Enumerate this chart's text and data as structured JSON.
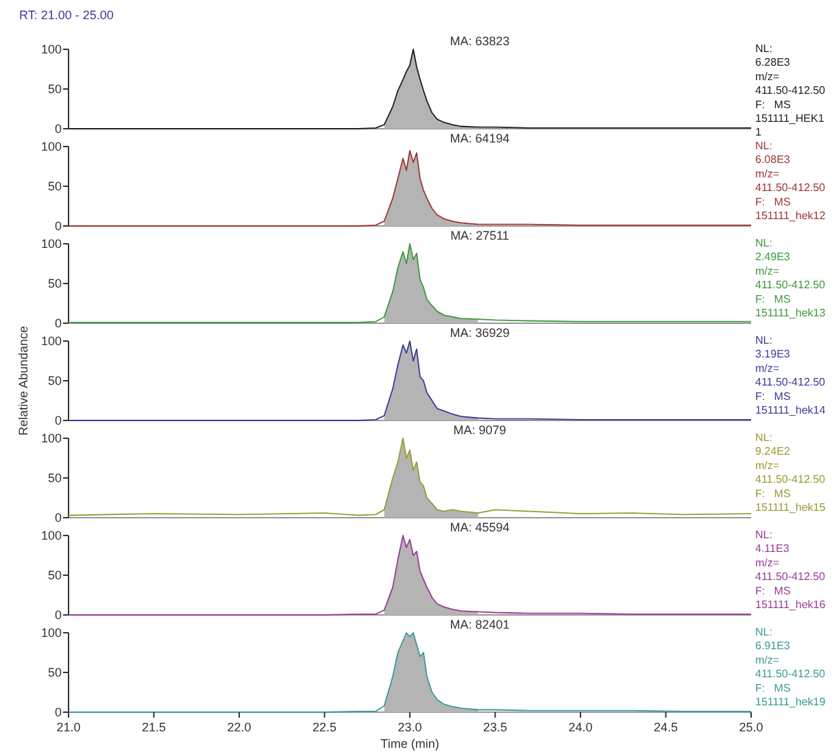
{
  "chart_data": [
    {
      "type": "line",
      "title": "RT: 21.00 - 25.00",
      "xlim": [
        21,
        25
      ],
      "ylim": [
        0,
        100
      ],
      "yticks": [
        0,
        50,
        100
      ],
      "tick_labels": "y",
      "grid": false,
      "annotations": [
        "MA: 63823",
        "NL:",
        "6.28E3",
        "m/z=",
        "411.50-412.50",
        "F:   MS",
        "151111_HEK1",
        "1"
      ],
      "series": [
        {
          "type": "area",
          "color": "#b4b4b4",
          "x": [
            22.85,
            22.9,
            22.93,
            22.96,
            22.98,
            23.0,
            23.02,
            23.04,
            23.06,
            23.08,
            23.1,
            23.13,
            23.16,
            23.2,
            23.25,
            23.3,
            23.4
          ],
          "values": [
            5,
            28,
            48,
            62,
            72,
            80,
            100,
            78,
            62,
            48,
            35,
            20,
            12,
            8,
            5,
            3,
            2
          ]
        },
        {
          "color": "#202020",
          "x": [
            21.0,
            21.5,
            22.0,
            22.5,
            22.7,
            22.8,
            22.85,
            22.9,
            22.93,
            22.96,
            22.98,
            23.0,
            23.02,
            23.04,
            23.06,
            23.08,
            23.1,
            23.13,
            23.16,
            23.2,
            23.25,
            23.3,
            23.4,
            23.5,
            23.7,
            24.0,
            24.3,
            24.6,
            25.0
          ],
          "values": [
            0,
            0,
            0,
            0,
            0,
            1,
            5,
            28,
            48,
            62,
            72,
            80,
            100,
            78,
            62,
            48,
            35,
            20,
            12,
            8,
            5,
            3,
            2,
            2,
            1,
            1,
            1,
            1,
            1
          ]
        }
      ]
    },
    {
      "type": "line",
      "xlim": [
        21,
        25
      ],
      "ylim": [
        0,
        100
      ],
      "yticks": [
        0,
        50,
        100
      ],
      "tick_labels": "y",
      "grid": false,
      "annotations": [
        "MA: 64194",
        "NL:",
        "6.08E3",
        "m/z=",
        "411.50-412.50",
        "F:   MS",
        "151111_hek12"
      ],
      "series": [
        {
          "type": "area",
          "color": "#b4b4b4",
          "x": [
            22.85,
            22.9,
            22.93,
            22.96,
            22.98,
            23.0,
            23.02,
            23.04,
            23.06,
            23.08,
            23.1,
            23.13,
            23.16,
            23.2,
            23.25,
            23.3,
            23.4
          ],
          "values": [
            6,
            35,
            60,
            85,
            70,
            95,
            80,
            92,
            60,
            45,
            35,
            22,
            14,
            9,
            6,
            4,
            2
          ]
        },
        {
          "color": "#a03434",
          "x": [
            21.0,
            21.5,
            22.0,
            22.5,
            22.7,
            22.8,
            22.85,
            22.9,
            22.93,
            22.96,
            22.98,
            23.0,
            23.02,
            23.04,
            23.06,
            23.08,
            23.1,
            23.13,
            23.16,
            23.2,
            23.25,
            23.3,
            23.4,
            23.5,
            23.7,
            24.0,
            24.3,
            24.6,
            25.0
          ],
          "values": [
            0,
            0,
            0,
            0,
            0,
            1,
            6,
            35,
            60,
            85,
            70,
            95,
            80,
            92,
            60,
            45,
            35,
            22,
            14,
            9,
            6,
            4,
            2,
            2,
            2,
            1,
            1,
            1,
            1
          ]
        }
      ]
    },
    {
      "type": "line",
      "xlim": [
        21,
        25
      ],
      "ylim": [
        0,
        100
      ],
      "yticks": [
        0,
        50,
        100
      ],
      "tick_labels": "y",
      "grid": false,
      "annotations": [
        "MA: 27511",
        "NL:",
        "2.49E3",
        "m/z=",
        "411.50-412.50",
        "F:   MS",
        "151111_hek13"
      ],
      "series": [
        {
          "type": "area",
          "color": "#b4b4b4",
          "x": [
            22.85,
            22.9,
            22.93,
            22.96,
            22.98,
            23.0,
            23.02,
            23.04,
            23.06,
            23.08,
            23.1,
            23.13,
            23.16,
            23.2,
            23.25,
            23.3,
            23.4
          ],
          "values": [
            8,
            40,
            70,
            90,
            75,
            100,
            80,
            88,
            55,
            45,
            30,
            22,
            15,
            10,
            8,
            6,
            5
          ]
        },
        {
          "color": "#3a9a3a",
          "x": [
            21.0,
            21.5,
            22.0,
            22.5,
            22.7,
            22.8,
            22.85,
            22.9,
            22.93,
            22.96,
            22.98,
            23.0,
            23.02,
            23.04,
            23.06,
            23.08,
            23.1,
            23.13,
            23.16,
            23.2,
            23.25,
            23.3,
            23.4,
            23.5,
            23.7,
            24.0,
            24.3,
            24.6,
            25.0
          ],
          "values": [
            1,
            1,
            1,
            1,
            1,
            2,
            8,
            40,
            70,
            90,
            75,
            100,
            80,
            88,
            55,
            45,
            30,
            22,
            15,
            10,
            8,
            6,
            5,
            4,
            3,
            2,
            2,
            2,
            2
          ]
        }
      ]
    },
    {
      "type": "line",
      "ylabel": "Relative Abundance",
      "xlim": [
        21,
        25
      ],
      "ylim": [
        0,
        100
      ],
      "yticks": [
        0,
        50,
        100
      ],
      "tick_labels": "y",
      "grid": false,
      "annotations": [
        "MA: 36929",
        "NL:",
        "3.19E3",
        "m/z=",
        "411.50-412.50",
        "F:   MS",
        "151111_hek14"
      ],
      "series": [
        {
          "type": "area",
          "color": "#b4b4b4",
          "x": [
            22.85,
            22.9,
            22.93,
            22.96,
            22.98,
            23.0,
            23.02,
            23.04,
            23.06,
            23.08,
            23.1,
            23.13,
            23.16,
            23.2,
            23.25,
            23.3,
            23.4
          ],
          "values": [
            6,
            40,
            70,
            95,
            85,
            100,
            75,
            90,
            55,
            50,
            35,
            25,
            15,
            12,
            8,
            5,
            3
          ]
        },
        {
          "color": "#3a3a9a",
          "x": [
            21.0,
            21.5,
            22.0,
            22.5,
            22.7,
            22.8,
            22.85,
            22.9,
            22.93,
            22.96,
            22.98,
            23.0,
            23.02,
            23.04,
            23.06,
            23.08,
            23.1,
            23.13,
            23.16,
            23.2,
            23.25,
            23.3,
            23.4,
            23.5,
            23.7,
            24.0,
            24.3,
            24.6,
            25.0
          ],
          "values": [
            0,
            0,
            0,
            0,
            0,
            1,
            6,
            40,
            70,
            95,
            85,
            100,
            75,
            90,
            55,
            50,
            35,
            25,
            15,
            12,
            8,
            5,
            3,
            2,
            2,
            1,
            1,
            1,
            1
          ]
        }
      ]
    },
    {
      "type": "line",
      "xlim": [
        21,
        25
      ],
      "ylim": [
        0,
        100
      ],
      "yticks": [
        0,
        50,
        100
      ],
      "tick_labels": "y",
      "grid": false,
      "annotations": [
        "MA: 9079",
        "NL:",
        "9.24E2",
        "m/z=",
        "411.50-412.50",
        "F:   MS",
        "151111_hek15"
      ],
      "series": [
        {
          "type": "area",
          "color": "#b4b4b4",
          "x": [
            22.85,
            22.9,
            22.93,
            22.96,
            22.98,
            23.0,
            23.02,
            23.04,
            23.06,
            23.08,
            23.1,
            23.13,
            23.16,
            23.2,
            23.25,
            23.3,
            23.4
          ],
          "values": [
            10,
            50,
            70,
            100,
            75,
            85,
            60,
            70,
            45,
            40,
            25,
            18,
            10,
            8,
            10,
            8,
            6
          ]
        },
        {
          "color": "#9a9a34",
          "x": [
            21.0,
            21.5,
            22.0,
            22.5,
            22.7,
            22.8,
            22.85,
            22.9,
            22.93,
            22.96,
            22.98,
            23.0,
            23.02,
            23.04,
            23.06,
            23.08,
            23.1,
            23.13,
            23.16,
            23.2,
            23.25,
            23.3,
            23.4,
            23.5,
            23.7,
            24.0,
            24.3,
            24.6,
            25.0
          ],
          "values": [
            3,
            5,
            4,
            6,
            3,
            4,
            10,
            50,
            70,
            100,
            75,
            85,
            60,
            70,
            45,
            40,
            25,
            18,
            10,
            8,
            10,
            8,
            6,
            10,
            8,
            5,
            6,
            4,
            5
          ]
        }
      ]
    },
    {
      "type": "line",
      "xlim": [
        21,
        25
      ],
      "ylim": [
        0,
        100
      ],
      "yticks": [
        0,
        50,
        100
      ],
      "tick_labels": "y",
      "grid": false,
      "annotations": [
        "MA: 45594",
        "NL:",
        "4.11E3",
        "m/z=",
        "411.50-412.50",
        "F:   MS",
        "151111_hek16"
      ],
      "series": [
        {
          "type": "area",
          "color": "#b4b4b4",
          "x": [
            22.85,
            22.9,
            22.93,
            22.96,
            22.98,
            23.0,
            23.02,
            23.04,
            23.06,
            23.08,
            23.1,
            23.13,
            23.16,
            23.2,
            23.25,
            23.3,
            23.4
          ],
          "values": [
            6,
            35,
            70,
            100,
            85,
            95,
            75,
            80,
            55,
            45,
            35,
            22,
            14,
            10,
            7,
            5,
            4
          ]
        },
        {
          "color": "#9a3a9a",
          "x": [
            21.0,
            21.5,
            22.0,
            22.5,
            22.7,
            22.8,
            22.85,
            22.9,
            22.93,
            22.96,
            22.98,
            23.0,
            23.02,
            23.04,
            23.06,
            23.08,
            23.1,
            23.13,
            23.16,
            23.2,
            23.25,
            23.3,
            23.4,
            23.5,
            23.7,
            24.0,
            24.3,
            24.6,
            25.0
          ],
          "values": [
            0,
            0,
            0,
            0,
            1,
            1,
            6,
            35,
            70,
            100,
            85,
            95,
            75,
            80,
            55,
            45,
            35,
            22,
            14,
            10,
            7,
            5,
            4,
            3,
            2,
            2,
            1,
            1,
            1
          ]
        }
      ]
    },
    {
      "type": "line",
      "xlabel": "Time (min)",
      "xlim": [
        21,
        25
      ],
      "xticks": [
        {
          "value": 21,
          "label": "21.0"
        },
        21.5,
        {
          "value": 22,
          "label": "22.0"
        },
        22.5,
        {
          "value": 23,
          "label": "23.0"
        },
        23.5,
        {
          "value": 24,
          "label": "24.0"
        },
        24.5,
        {
          "value": 25,
          "label": "25.0"
        }
      ],
      "ylim": [
        0,
        100
      ],
      "yticks": [
        0,
        50,
        100
      ],
      "grid": false,
      "annotations": [
        "MA: 82401",
        "NL:",
        "6.91E3",
        "m/z=",
        "411.50-412.50",
        "F:   MS",
        "151111_hek19"
      ],
      "series": [
        {
          "type": "area",
          "color": "#b4b4b4",
          "x": [
            22.85,
            22.9,
            22.93,
            22.96,
            22.98,
            23.0,
            23.02,
            23.04,
            23.06,
            23.08,
            23.1,
            23.13,
            23.16,
            23.2,
            23.25,
            23.3,
            23.4
          ],
          "values": [
            8,
            45,
            75,
            90,
            100,
            95,
            100,
            85,
            70,
            75,
            45,
            25,
            16,
            10,
            7,
            5,
            3
          ]
        },
        {
          "color": "#3a9a9a",
          "x": [
            21.0,
            21.5,
            22.0,
            22.5,
            22.7,
            22.8,
            22.85,
            22.9,
            22.93,
            22.96,
            22.98,
            23.0,
            23.02,
            23.04,
            23.06,
            23.08,
            23.1,
            23.13,
            23.16,
            23.2,
            23.25,
            23.3,
            23.4,
            23.5,
            23.7,
            24.0,
            24.3,
            24.6,
            25.0
          ],
          "values": [
            0,
            0,
            0,
            0,
            1,
            1,
            8,
            45,
            75,
            90,
            100,
            95,
            100,
            85,
            70,
            75,
            45,
            25,
            16,
            10,
            7,
            5,
            3,
            3,
            2,
            2,
            2,
            1,
            1
          ]
        }
      ]
    }
  ]
}
